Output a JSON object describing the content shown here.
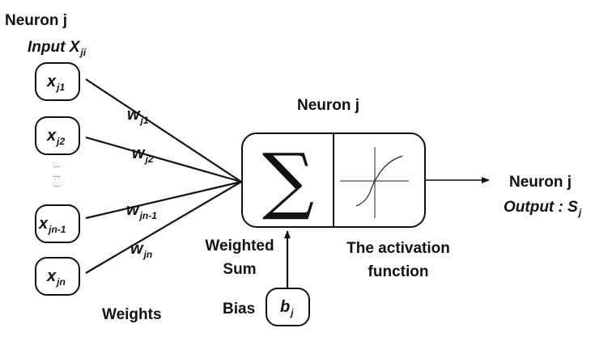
{
  "title": {
    "line1": "Neuron j",
    "line2_prefix": "Input X",
    "line2_sub": "ji"
  },
  "inputs": [
    {
      "base": "x",
      "sub": "j1"
    },
    {
      "base": "x",
      "sub": "j2"
    },
    {
      "base": "x",
      "sub": "jn-1"
    },
    {
      "base": "x",
      "sub": "jn"
    }
  ],
  "ellipsis": "...\n...\n...",
  "weights": [
    {
      "base": "w",
      "sub": "j1"
    },
    {
      "base": "w",
      "sub": "j2"
    },
    {
      "base": "w",
      "sub": "jn-1"
    },
    {
      "base": "w",
      "sub": "jn"
    }
  ],
  "weights_caption": "Weights",
  "neuron_label": "Neuron j",
  "sum_symbol": "∑",
  "weighted_sum_label": {
    "line1": "Weighted",
    "line2": "Sum"
  },
  "activation_label": {
    "line1": "The activation",
    "line2": "function"
  },
  "bias": {
    "label": "Bias",
    "base": "b",
    "sub": "j"
  },
  "output": {
    "line1": "Neuron j",
    "line2_prefix": "Output : S",
    "line2_sub": "j"
  }
}
